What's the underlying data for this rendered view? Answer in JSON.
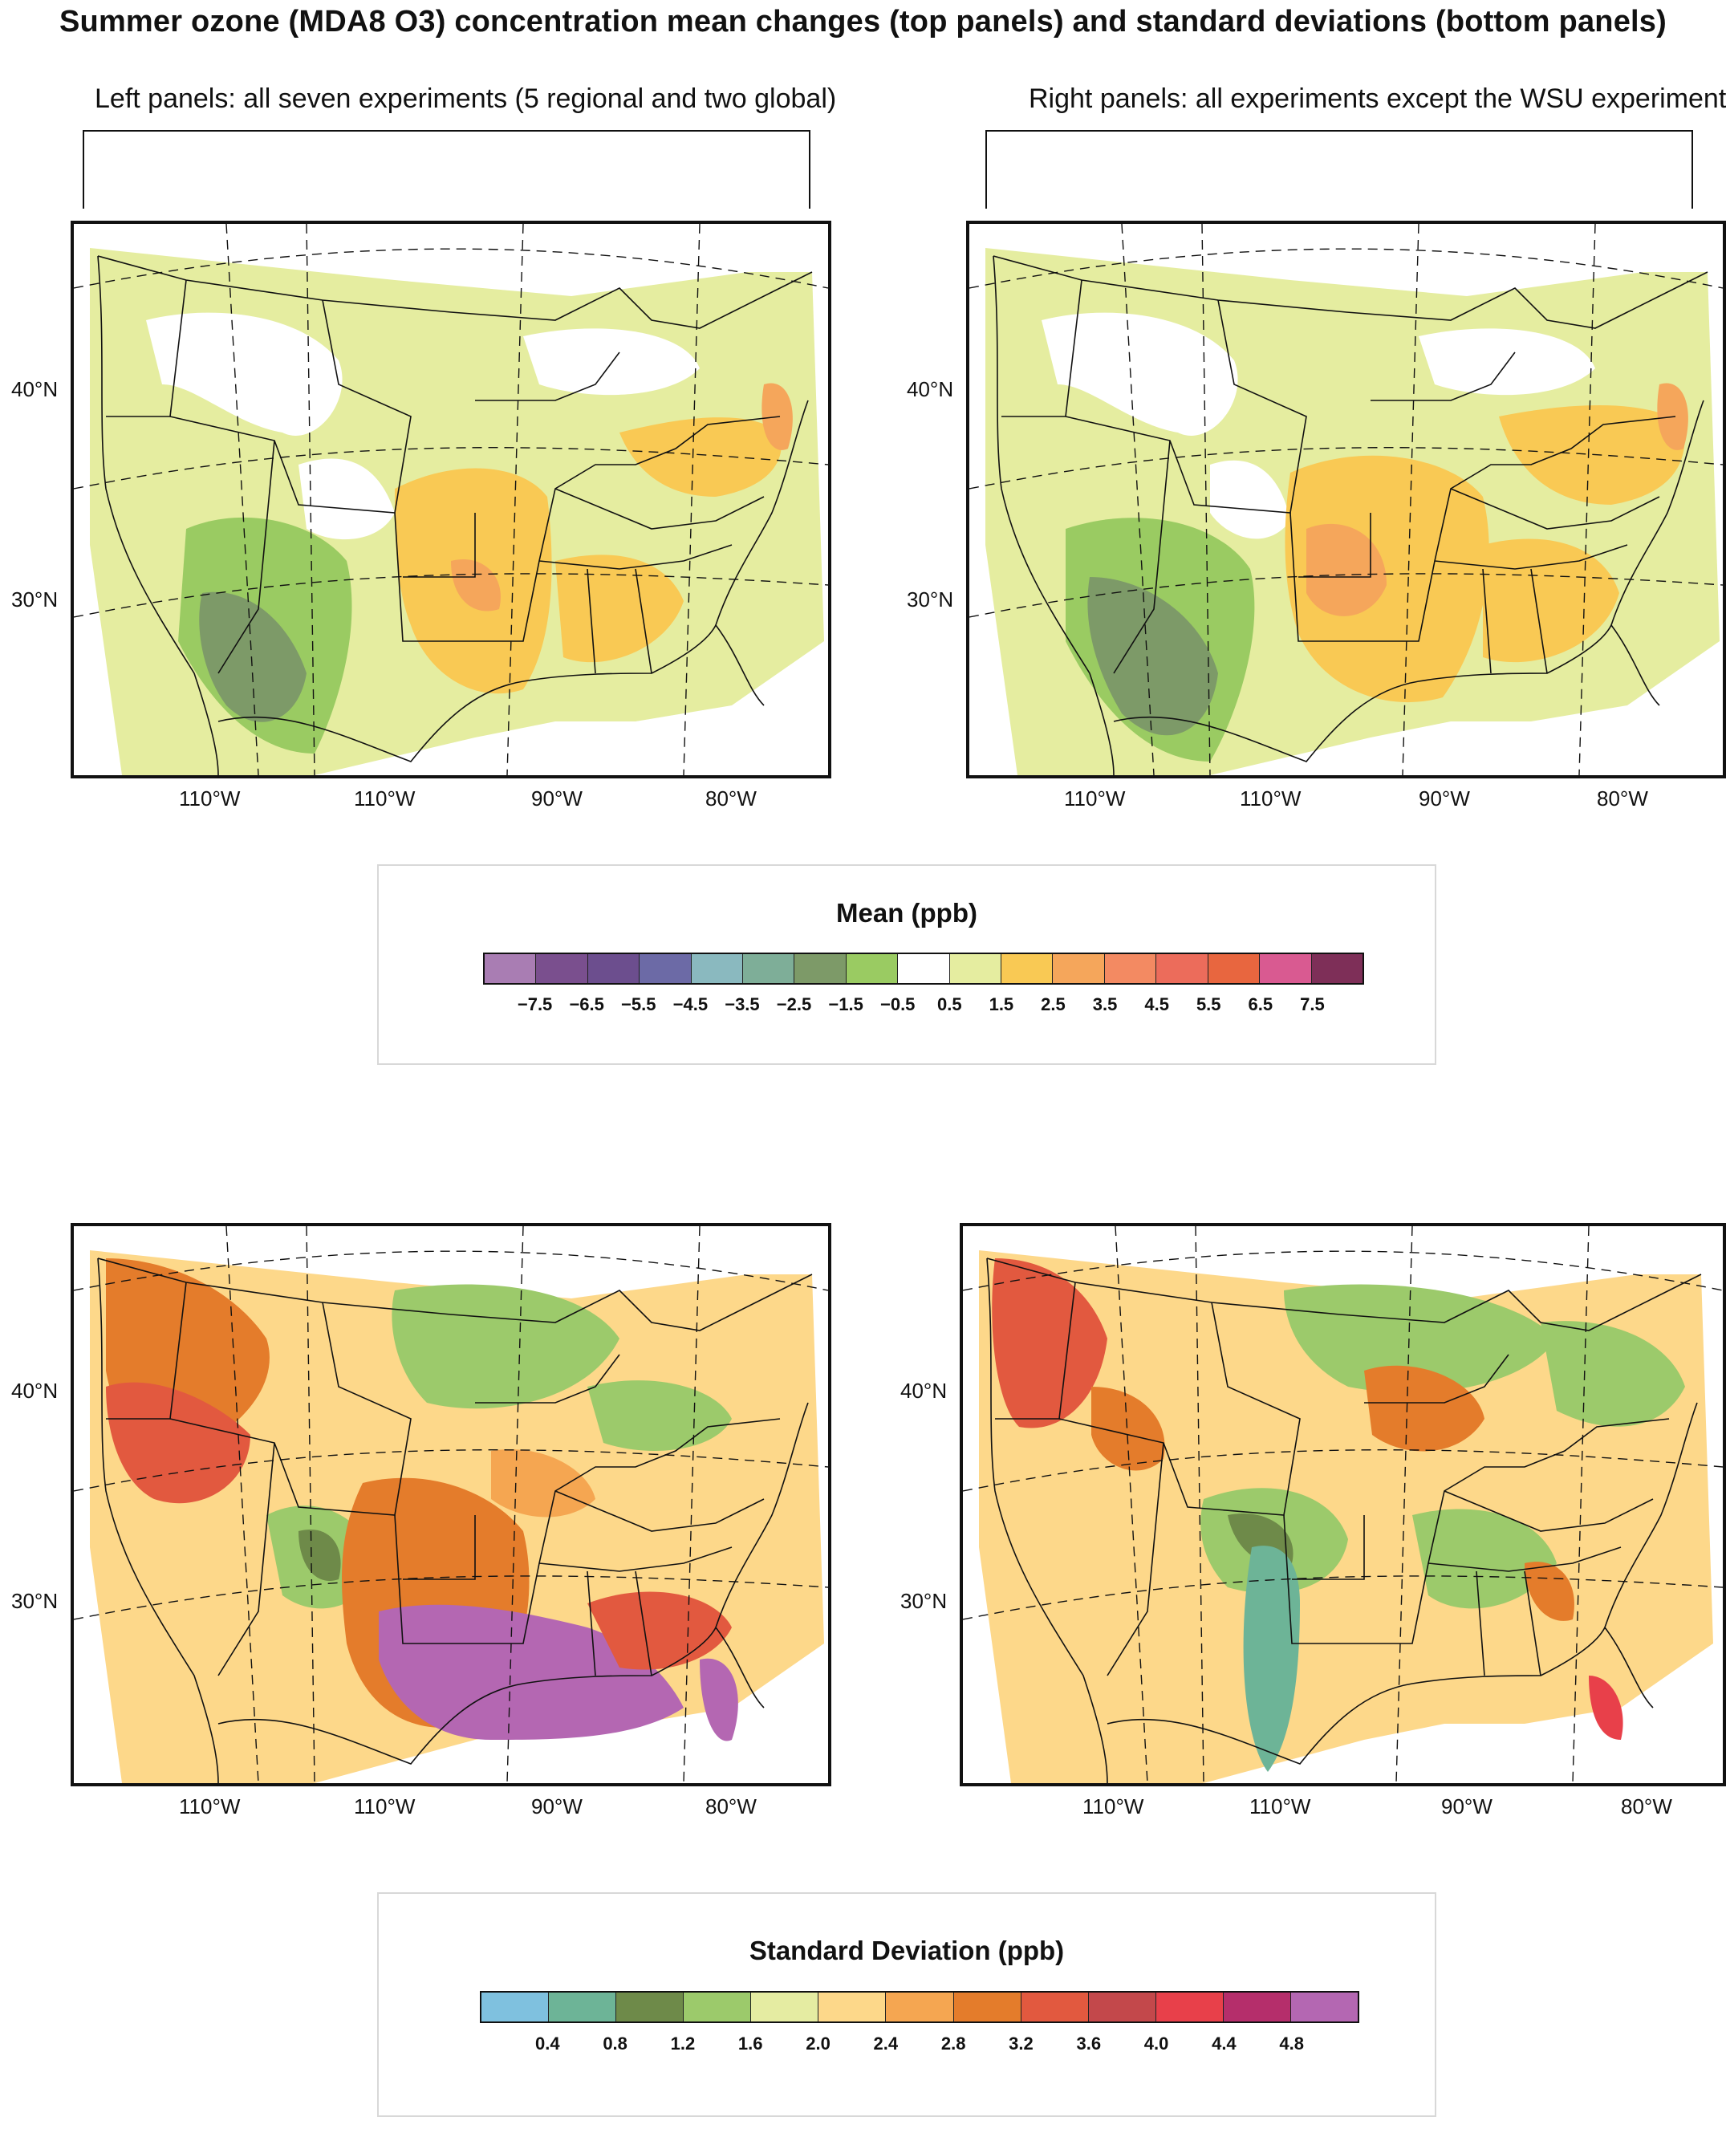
{
  "title": "Summer ozone (MDA8 O3) concentration mean changes (top panels) and standard deviations (bottom panels)",
  "subtitles": {
    "left": "Left panels: all seven experiments (5 regional and two global)",
    "right": "Right panels: all experiments except the WSU experiment"
  },
  "panels": {
    "lat_labels": [
      "40°N",
      "30°N"
    ],
    "lon_labels": [
      "110°W",
      "110°W",
      "90°W",
      "80°W"
    ]
  },
  "mean_legend": {
    "title": "Mean (ppb)",
    "colors": [
      "#a97db3",
      "#7a4f8e",
      "#6c4e8e",
      "#6c6aa6",
      "#8ab9bf",
      "#7eae98",
      "#7d9a68",
      "#9acb62",
      "#ffffff",
      "#e5eda0",
      "#f9c954",
      "#f5a65b",
      "#f38a62",
      "#ec6c5b",
      "#e8663f",
      "#d95a91",
      "#7e2f58"
    ],
    "ticks": [
      "−7.5",
      "−6.5",
      "−5.5",
      "−4.5",
      "−3.5",
      "−2.5",
      "−1.5",
      "−0.5",
      "0.5",
      "1.5",
      "2.5",
      "3.5",
      "4.5",
      "5.5",
      "6.5",
      "7.5"
    ]
  },
  "sd_legend": {
    "title": "Standard Deviation (ppb)",
    "colors": [
      "#7fc1df",
      "#6db497",
      "#6e8a49",
      "#9cca6b",
      "#e5eca2",
      "#fdd88a",
      "#f5a651",
      "#e47c2b",
      "#e2593f",
      "#c3484b",
      "#e8404a",
      "#b52e6b",
      "#b467b2"
    ],
    "ticks": [
      "0.4",
      "0.8",
      "1.2",
      "1.6",
      "2.0",
      "2.4",
      "2.8",
      "3.2",
      "3.6",
      "4.0",
      "4.4",
      "4.8"
    ]
  }
}
